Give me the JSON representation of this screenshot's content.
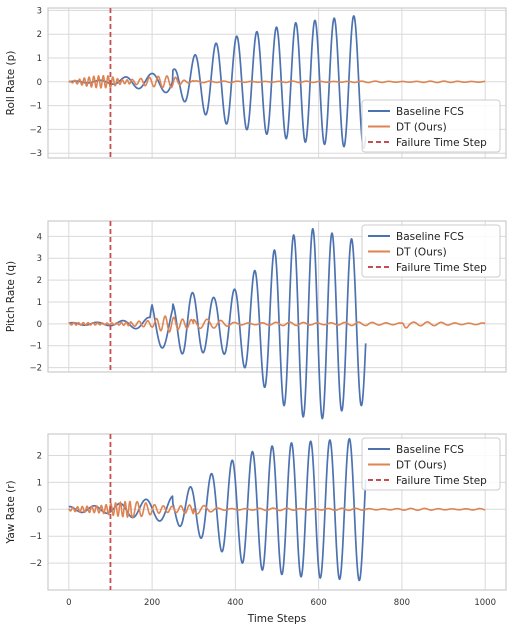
{
  "chart_data": [
    {
      "type": "line",
      "ylabel": "Roll Rate (p)",
      "xlabel": "",
      "xlim": [
        -50,
        1050
      ],
      "ylim": [
        -3.2,
        3.1
      ],
      "yticks": [
        "3",
        "2",
        "1",
        "0",
        "−1",
        "−2",
        "−3"
      ],
      "ytick_values": [
        3,
        2,
        1,
        0,
        -1,
        -2,
        -3
      ],
      "xticks": [
        0,
        200,
        400,
        600,
        800,
        1000
      ],
      "xtick_labels_shown": false,
      "grid": true,
      "legend_placement": "lower-right",
      "failure_time_step": 100,
      "series": [
        {
          "name": "Baseline FCS",
          "color": "#4C72B0",
          "x_end": 713,
          "envelope": [
            [
              0,
              0.02
            ],
            [
              100,
              0.08
            ],
            [
              150,
              0.25
            ],
            [
              200,
              0.35
            ],
            [
              250,
              0.5
            ],
            [
              300,
              1.1
            ],
            [
              350,
              1.6
            ],
            [
              400,
              1.9
            ],
            [
              450,
              2.1
            ],
            [
              500,
              2.3
            ],
            [
              550,
              2.5
            ],
            [
              600,
              2.6
            ],
            [
              650,
              2.7
            ],
            [
              700,
              2.8
            ],
            [
              713,
              2.8
            ]
          ]
        },
        {
          "name": "DT (Ours)",
          "color": "#DD8452",
          "x_end": 1000,
          "envelope": [
            [
              0,
              0.02
            ],
            [
              100,
              0.4
            ],
            [
              130,
              0.15
            ],
            [
              200,
              0.2
            ],
            [
              250,
              0.3
            ],
            [
              280,
              0.1
            ],
            [
              350,
              0.03
            ],
            [
              1000,
              0.03
            ]
          ]
        }
      ]
    },
    {
      "type": "line",
      "ylabel": "Pitch Rate (q)",
      "xlabel": "",
      "xlim": [
        -50,
        1050
      ],
      "ylim": [
        -2.2,
        4.7
      ],
      "yticks": [
        "4",
        "3",
        "2",
        "1",
        "0",
        "−1",
        "−2"
      ],
      "ytick_values": [
        4,
        3,
        2,
        1,
        0,
        -1,
        -2
      ],
      "xticks": [
        0,
        200,
        400,
        600,
        800,
        1000
      ],
      "xtick_labels_shown": false,
      "grid": true,
      "legend_placement": "top-right",
      "failure_time_step": 100,
      "series": [
        {
          "name": "Baseline FCS",
          "color": "#4C72B0",
          "x_end": 713,
          "envelope": [
            [
              0,
              0.05
            ],
            [
              100,
              0.08
            ],
            [
              195,
              0.3
            ],
            [
              200,
              1.2
            ],
            [
              250,
              1.0
            ],
            [
              280,
              1.5
            ],
            [
              350,
              1.2
            ],
            [
              400,
              1.6
            ],
            [
              450,
              2.5
            ],
            [
              500,
              3.5
            ],
            [
              550,
              4.2
            ],
            [
              600,
              4.4
            ],
            [
              650,
              4.0
            ],
            [
              700,
              3.8
            ],
            [
              713,
              3.5
            ]
          ]
        },
        {
          "name": "DT (Ours)",
          "color": "#DD8452",
          "x_end": 1000,
          "envelope": [
            [
              0,
              0.05
            ],
            [
              100,
              0.08
            ],
            [
              200,
              0.15
            ],
            [
              240,
              0.6
            ],
            [
              300,
              0.3
            ],
            [
              400,
              0.08
            ],
            [
              800,
              0.08
            ],
            [
              805,
              0.4
            ],
            [
              820,
              0.1
            ],
            [
              1000,
              0.05
            ]
          ]
        }
      ]
    },
    {
      "type": "line",
      "ylabel": "Yaw Rate (r)",
      "xlabel": "Time Steps",
      "xlim": [
        -50,
        1050
      ],
      "ylim": [
        -3.0,
        2.8
      ],
      "yticks": [
        "2",
        "1",
        "0",
        "−1",
        "−2"
      ],
      "ytick_values": [
        2,
        1,
        0,
        -1,
        -2
      ],
      "xticks": [
        "0",
        "200",
        "400",
        "600",
        "800",
        "1000"
      ],
      "xtick_values": [
        0,
        200,
        400,
        600,
        800,
        1000
      ],
      "xtick_labels_shown": true,
      "grid": true,
      "legend_placement": "top-right",
      "failure_time_step": 100,
      "series": [
        {
          "name": "Baseline FCS",
          "color": "#4C72B0",
          "x_end": 713,
          "envelope": [
            [
              0,
              0.1
            ],
            [
              100,
              0.15
            ],
            [
              150,
              0.3
            ],
            [
              200,
              0.4
            ],
            [
              250,
              0.5
            ],
            [
              300,
              0.9
            ],
            [
              350,
              1.4
            ],
            [
              400,
              1.9
            ],
            [
              450,
              2.2
            ],
            [
              500,
              2.4
            ],
            [
              550,
              2.5
            ],
            [
              600,
              2.55
            ],
            [
              650,
              2.6
            ],
            [
              700,
              2.65
            ],
            [
              713,
              2.6
            ]
          ]
        },
        {
          "name": "DT (Ours)",
          "color": "#DD8452",
          "x_end": 1000,
          "envelope": [
            [
              0,
              0.05
            ],
            [
              100,
              0.35
            ],
            [
              150,
              0.3
            ],
            [
              200,
              0.25
            ],
            [
              300,
              0.2
            ],
            [
              360,
              0.05
            ],
            [
              1000,
              0.03
            ]
          ]
        }
      ]
    }
  ],
  "legend": {
    "baseline_label": "Baseline FCS",
    "dt_label": "DT (Ours)",
    "failure_label": "Failure Time Step",
    "baseline_color": "#4C72B0",
    "dt_color": "#DD8452",
    "failure_color": "#C44E52"
  }
}
